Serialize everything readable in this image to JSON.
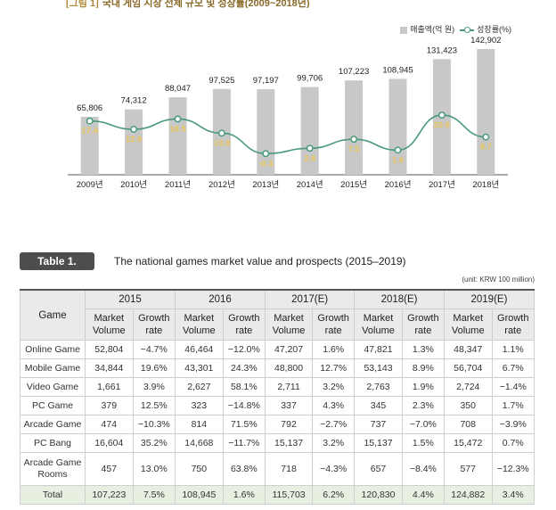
{
  "figure": {
    "label": "[그림 1]",
    "title": "국내 게임 시장 전체 규모 및 성장률(2009~2018년)",
    "legend": {
      "bar": "매출액(억 원)",
      "line": "성장률(%)"
    }
  },
  "chart_data": {
    "type": "bar",
    "categories": [
      "2009년",
      "2010년",
      "2011년",
      "2012년",
      "2013년",
      "2014년",
      "2015년",
      "2016년",
      "2017년",
      "2018년"
    ],
    "series": [
      {
        "name": "매출액(억 원)",
        "values": [
          65806,
          74312,
          88047,
          97525,
          97197,
          99706,
          107223,
          108945,
          131423,
          142902
        ],
        "labels": [
          "65,806",
          "74,312",
          "88,047",
          "97,525",
          "97,197",
          "99,706",
          "107,223",
          "108,945",
          "131,423",
          "142,902"
        ]
      },
      {
        "name": "성장률(%)",
        "type": "line",
        "values": [
          17.4,
          12.9,
          18.5,
          10.8,
          -0.3,
          2.6,
          7.5,
          1.6,
          20.6,
          8.7
        ],
        "labels": [
          "17.4",
          "12.9",
          "18.5",
          "10.8",
          "-0.3",
          "2.6",
          "7.5",
          "1.6",
          "20.6",
          "8.7"
        ]
      }
    ],
    "colors": {
      "bar": "#c8c8c8",
      "line": "#4a9a7a",
      "growth_label": "#e8c65a"
    }
  },
  "table": {
    "tag": "Table 1.",
    "caption": "The national games market value and prospects (2015–2019)",
    "unit": "(unit: KRW 100 million)",
    "game_header": "Game",
    "years": [
      "2015",
      "2016",
      "2017(E)",
      "2018(E)",
      "2019(E)"
    ],
    "sub_volume": "Market Volume",
    "sub_growth": "Growth rate",
    "rows": [
      {
        "game": "Online Game",
        "cells": [
          "52,804",
          "−4.7%",
          "46,464",
          "−12.0%",
          "47,207",
          "1.6%",
          "47,821",
          "1.3%",
          "48,347",
          "1.1%"
        ]
      },
      {
        "game": "Mobile Game",
        "cells": [
          "34,844",
          "19.6%",
          "43,301",
          "24.3%",
          "48,800",
          "12.7%",
          "53,143",
          "8.9%",
          "56,704",
          "6.7%"
        ]
      },
      {
        "game": "Video Game",
        "cells": [
          "1,661",
          "3.9%",
          "2,627",
          "58.1%",
          "2,711",
          "3.2%",
          "2,763",
          "1.9%",
          "2,724",
          "−1.4%"
        ]
      },
      {
        "game": "PC Game",
        "cells": [
          "379",
          "12.5%",
          "323",
          "−14.8%",
          "337",
          "4.3%",
          "345",
          "2.3%",
          "350",
          "1.7%"
        ]
      },
      {
        "game": "Arcade Game",
        "cells": [
          "474",
          "−10.3%",
          "814",
          "71.5%",
          "792",
          "−2.7%",
          "737",
          "−7.0%",
          "708",
          "−3.9%"
        ]
      },
      {
        "game": "PC Bang",
        "cells": [
          "16,604",
          "35.2%",
          "14,668",
          "−11.7%",
          "15,137",
          "3.2%",
          "15,137",
          "1.5%",
          "15,472",
          "0.7%"
        ]
      },
      {
        "game": "Arcade Game Rooms",
        "cells": [
          "457",
          "13.0%",
          "750",
          "63.8%",
          "718",
          "−4.3%",
          "657",
          "−8.4%",
          "577",
          "−12.3%"
        ]
      },
      {
        "game": "Total",
        "cells": [
          "107,223",
          "7.5%",
          "108,945",
          "1.6%",
          "115,703",
          "6.2%",
          "120,830",
          "4.4%",
          "124,882",
          "3.4%"
        ]
      }
    ]
  }
}
